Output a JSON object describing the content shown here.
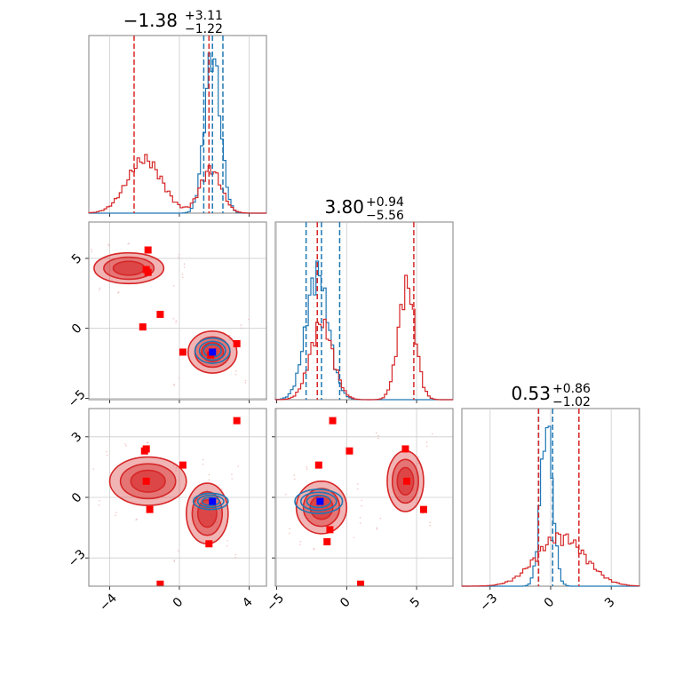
{
  "chart_data": {
    "type": "corner",
    "parameters": 3,
    "colors": {
      "series_a": "#1f77b4",
      "series_b": "#d62728",
      "truth_a": "#0000ff",
      "truth_b": "#ff0000"
    },
    "grid": true,
    "titles": [
      {
        "value": "−1.38",
        "upper": "+3.11",
        "lower": "−1.22"
      },
      {
        "value": "3.80",
        "upper": "+0.94",
        "lower": "−5.56"
      },
      {
        "value": "0.53",
        "upper": "+0.86",
        "lower": "−1.02"
      }
    ],
    "axes": {
      "p0": {
        "range": [
          -5.2,
          5.0
        ],
        "ticks": [
          -4,
          0,
          4
        ],
        "tick_labels": [
          "−4",
          "0",
          "4"
        ]
      },
      "p1": {
        "range": [
          -5.1,
          7.6
        ],
        "ticks": [
          -5,
          0,
          5
        ],
        "tick_labels": [
          "−5",
          "0",
          "5"
        ]
      },
      "p2": {
        "range": [
          -4.4,
          4.4
        ],
        "ticks": [
          -3,
          0,
          3
        ],
        "tick_labels": [
          "−3",
          "0",
          "3"
        ]
      }
    },
    "marginals": [
      {
        "param": "p0",
        "series_a": {
          "center": 1.9,
          "sigma": 0.45,
          "weight": 1.0,
          "peak": 0.9,
          "quantiles": [
            1.4,
            1.9,
            2.5
          ]
        },
        "series_b": {
          "modes": [
            {
              "center": -2.0,
              "sigma": 1.0,
              "weight": 0.55
            },
            {
              "center": 1.8,
              "sigma": 0.6,
              "weight": 0.45
            }
          ],
          "peak": 0.33,
          "quantiles": [
            -2.6,
            1.7
          ]
        }
      },
      {
        "param": "p1",
        "series_a": {
          "center": -2.1,
          "sigma": 0.8,
          "weight": 1.0,
          "peak": 0.78,
          "quantiles": [
            -2.9,
            -1.8,
            -0.5
          ]
        },
        "series_b": {
          "modes": [
            {
              "center": -1.8,
              "sigma": 0.8,
              "weight": 0.4
            },
            {
              "center": 4.3,
              "sigma": 0.6,
              "weight": 0.6
            }
          ],
          "peak": 0.7,
          "quantiles": [
            -2.1,
            4.8
          ]
        }
      },
      {
        "param": "p2",
        "series_a": {
          "center": -0.2,
          "sigma": 0.3,
          "weight": 1.0,
          "peak": 0.9,
          "quantiles": [
            -0.6,
            0.1
          ]
        },
        "series_b": {
          "modes": [
            {
              "center": 0.5,
              "sigma": 1.2,
              "weight": 1.0
            }
          ],
          "peak": 0.3,
          "quantiles": [
            -0.6,
            1.4
          ]
        }
      }
    ],
    "pairs": [
      {
        "x": "p0",
        "y": "p1",
        "series_b_blobs": [
          {
            "cx": -2.9,
            "cy": 4.3,
            "rx": 2.0,
            "ry": 1.1
          },
          {
            "cx": 1.9,
            "cy": -1.7,
            "rx": 1.4,
            "ry": 1.5
          }
        ],
        "series_a_blobs": [
          {
            "cx": 1.9,
            "cy": -1.6,
            "rx": 1.0,
            "ry": 0.9
          }
        ],
        "truth_b": [
          [
            -1.8,
            5.6
          ],
          [
            -1.9,
            4.2
          ],
          [
            -1.8,
            4.0
          ],
          [
            -1.1,
            1.0
          ],
          [
            -2.1,
            0.1
          ],
          [
            0.2,
            -1.7
          ],
          [
            1.8,
            -1.9
          ],
          [
            3.3,
            -1.1
          ]
        ],
        "truth_a": [
          [
            1.9,
            -1.7
          ]
        ]
      },
      {
        "x": "p0",
        "y": "p2",
        "series_b_blobs": [
          {
            "cx": -1.8,
            "cy": 0.8,
            "rx": 2.2,
            "ry": 1.2
          },
          {
            "cx": 1.6,
            "cy": -0.8,
            "rx": 1.2,
            "ry": 1.5
          }
        ],
        "series_a_blobs": [
          {
            "cx": 1.8,
            "cy": -0.2,
            "rx": 1.0,
            "ry": 0.4
          }
        ],
        "truth_b": [
          [
            -2.0,
            2.3
          ],
          [
            -1.9,
            2.4
          ],
          [
            0.2,
            1.6
          ],
          [
            -1.9,
            0.8
          ],
          [
            -1.7,
            -0.6
          ],
          [
            1.7,
            -2.3
          ],
          [
            3.3,
            3.8
          ],
          [
            -1.1,
            -4.3
          ]
        ],
        "truth_a": [
          [
            1.9,
            -0.2
          ]
        ]
      },
      {
        "x": "p1",
        "y": "p2",
        "series_b_blobs": [
          {
            "cx": -1.8,
            "cy": -0.5,
            "rx": 1.8,
            "ry": 1.3
          },
          {
            "cx": 4.2,
            "cy": 0.8,
            "rx": 1.3,
            "ry": 1.5
          }
        ],
        "series_a_blobs": [
          {
            "cx": -2.0,
            "cy": -0.2,
            "rx": 1.7,
            "ry": 0.6
          }
        ],
        "truth_b": [
          [
            -1.0,
            3.8
          ],
          [
            0.2,
            2.3
          ],
          [
            -2.0,
            1.6
          ],
          [
            4.2,
            2.4
          ],
          [
            4.3,
            0.8
          ],
          [
            5.5,
            -0.6
          ],
          [
            -1.2,
            -1.6
          ],
          [
            -1.4,
            -2.2
          ],
          [
            1.0,
            -4.3
          ]
        ],
        "truth_a": [
          [
            -1.9,
            -0.2
          ]
        ]
      }
    ]
  }
}
